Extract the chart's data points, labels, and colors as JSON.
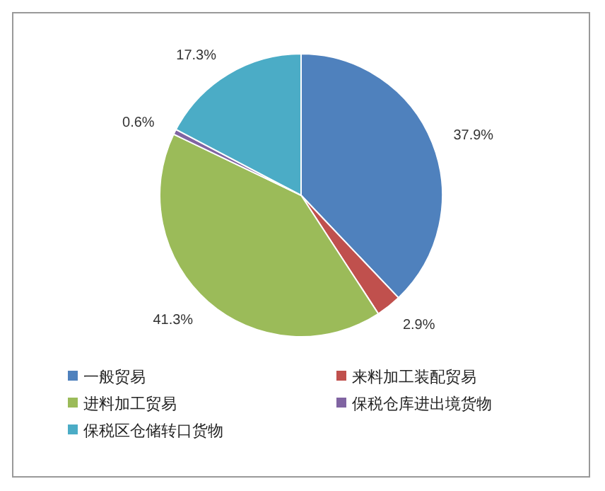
{
  "chart_data": {
    "type": "pie",
    "categories": [
      "一般贸易",
      "来料加工装配贸易",
      "进料加工贸易",
      "保税仓库进出境货物",
      "保税区仓储转口货物"
    ],
    "values": [
      37.9,
      2.9,
      41.3,
      0.6,
      17.3
    ],
    "colors": [
      "#4f81bd",
      "#c0504d",
      "#9bbb59",
      "#8064a2",
      "#4bacc6"
    ],
    "value_labels": [
      "37.9%",
      "2.9%",
      "41.3%",
      "0.6%",
      "17.3%"
    ],
    "legend": "bottom"
  }
}
